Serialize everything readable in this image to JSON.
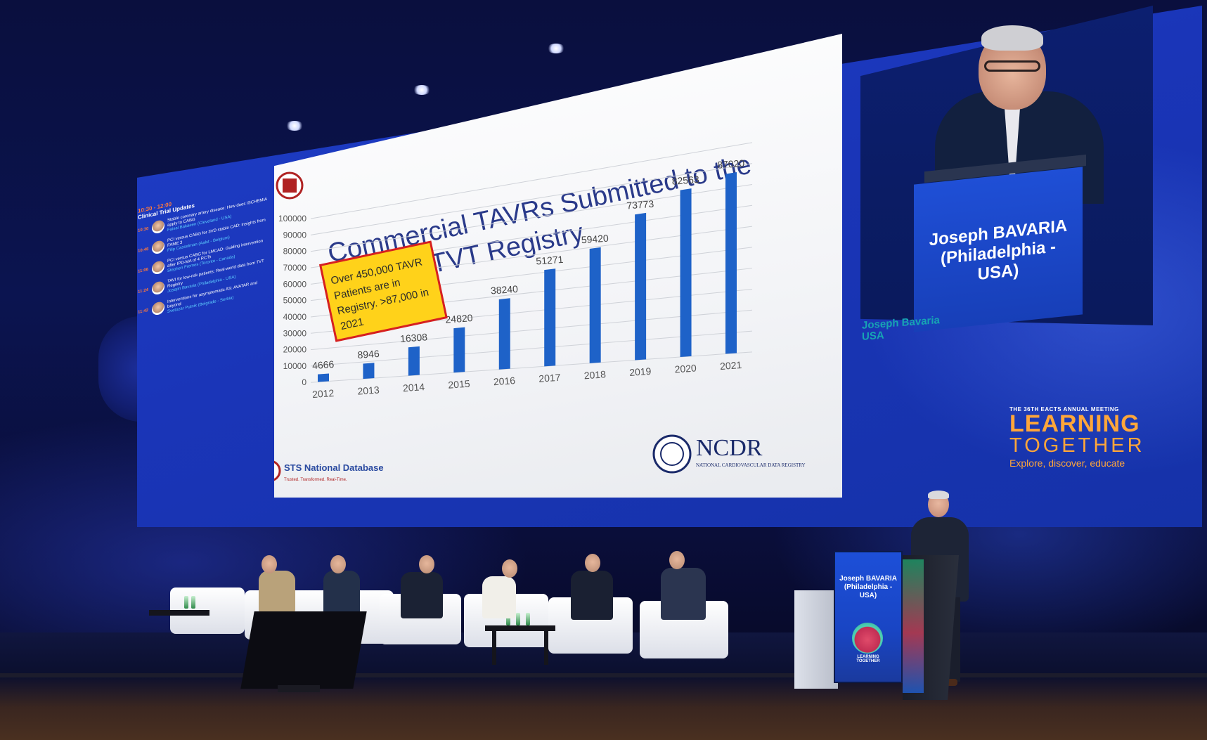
{
  "slide": {
    "title_line1": "Commercial TAVRs Submitted to the",
    "title_line2": "TVT Registry",
    "callout": [
      "Over 450,000 TAVR",
      "Patients are in",
      "Registry. >87,000 in",
      "2021"
    ],
    "footer_left": "STS National Database",
    "footer_left_tag": "Trusted. Transformed. Real-Time.",
    "footer_right": "NCDR",
    "footer_right_sub": "NATIONAL CARDIOVASCULAR DATA REGISTRY",
    "colors": {
      "bar": "#1e62c8",
      "callout_bg": "#ffd21a",
      "callout_border": "#d62020",
      "title": "#2a3a8a"
    }
  },
  "chart_data": {
    "type": "bar",
    "categories": [
      "2012",
      "2013",
      "2014",
      "2015",
      "2016",
      "2017",
      "2018",
      "2019",
      "2020",
      "2021"
    ],
    "values": [
      4666,
      8946,
      16308,
      24820,
      38240,
      51271,
      59420,
      73773,
      82563,
      87020
    ],
    "yticks": [
      "0",
      "10000",
      "20000",
      "30000",
      "40000",
      "50000",
      "60000",
      "70000",
      "80000",
      "90000",
      "100000"
    ],
    "ylim": [
      0,
      100000
    ],
    "grid": true,
    "title": "Commercial TAVRs Submitted to the TVT Registry"
  },
  "agenda": {
    "time": "10:30 - 12:00",
    "title": "Clinical Trial Updates",
    "items": [
      {
        "time": "10:30",
        "text": "Stable coronary artery disease: How does ISCHEMIA apply to CABG",
        "speaker": "Faisal Bakaeen (Cleveland - USA)"
      },
      {
        "time": "10:48",
        "text": "PCI versus CABG for 3VD stable CAD: Insights from FAME 3",
        "speaker": "Filip Casselman (Aalst - Belgium)"
      },
      {
        "time": "11:06",
        "text": "PCI versus CABG for LMCAD: Guiding intervention after IPD-MA of 4 RCTs",
        "speaker": "Stephen Fremes (Toronto - Canada)"
      },
      {
        "time": "11:24",
        "text": "TAVI for low-risk patients: Real-world data from TVT Registry",
        "speaker": "Joseph Bavaria (Philadelphia - USA)"
      },
      {
        "time": "11:42",
        "text": "Interventions for asymptomatic AS: AVATAR and beyond",
        "speaker": "Svetozar Putnik (Belgrade - Serbia)"
      }
    ]
  },
  "speaker_cam": {
    "name_line1": "Joseph BAVARIA",
    "name_line2": "(Philadelphia -",
    "name_line3": "USA)",
    "caption_line1": "Joseph Bavaria",
    "caption_line2": "USA"
  },
  "branding": {
    "small": "THE 36TH EACTS ANNUAL MEETING",
    "big1": "LEARNING",
    "big2": "TOGETHER",
    "tagline": "Explore, discover, educate"
  },
  "podium": {
    "name_line1": "Joseph BAVARIA",
    "name_line2": "(Philadelphia -",
    "name_line3": "USA)",
    "logo_text1": "LEARNING",
    "logo_text2": "TOGETHER"
  }
}
